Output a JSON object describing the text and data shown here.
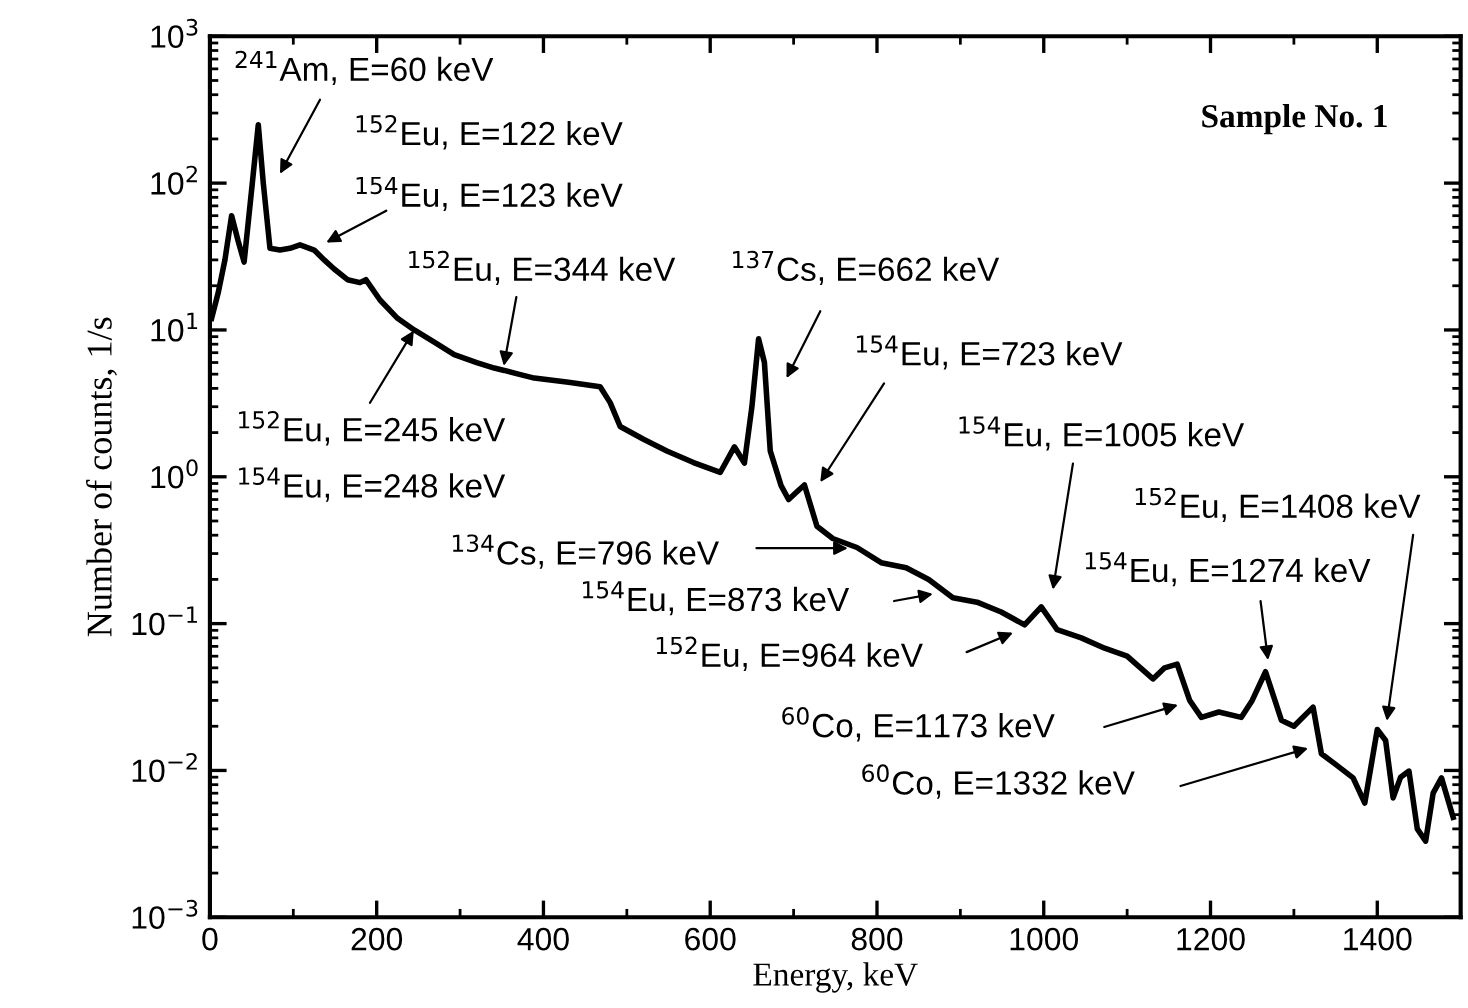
{
  "chart_data": {
    "type": "line",
    "xlabel": "Energy, keV",
    "ylabel": "Number of counts, 1/s",
    "log": "y",
    "grid": false,
    "xlim": [
      0,
      1500
    ],
    "xticks": [
      0,
      200,
      400,
      600,
      800,
      1000,
      1200,
      1400
    ],
    "ylim": [
      0.001,
      1000
    ],
    "yticks": [
      {
        "value": 0.001,
        "label": "10$^{−3}$"
      },
      {
        "value": 0.01,
        "label": "10$^{−2}$"
      },
      {
        "value": 0.1,
        "label": "10$^{−1}$"
      },
      {
        "value": 1,
        "label": "10$^{0}$"
      },
      {
        "value": 10,
        "label": "10$^{1}$"
      },
      {
        "value": 100,
        "label": "10$^{2}$"
      },
      {
        "value": 1000,
        "label": "10$^{3}$"
      }
    ],
    "series": [
      {
        "color": "#000000",
        "x": [
          2,
          10,
          18,
          26,
          34,
          41,
          50,
          58,
          64,
          72,
          84,
          96,
          108,
          125,
          137,
          149,
          165,
          180,
          187,
          204,
          225,
          245,
          270,
          293,
          320,
          341,
          353,
          370,
          389,
          430,
          468,
          480,
          492,
          520,
          548,
          580,
          612,
          629,
          641,
          650,
          658,
          665,
          672,
          685,
          694,
          705,
          713,
          728,
          747,
          776,
          805,
          835,
          862,
          891,
          920,
          949,
          977,
          997,
          1016,
          1045,
          1073,
          1100,
          1131,
          1145,
          1160,
          1175,
          1189,
          1210,
          1237,
          1250,
          1266,
          1285,
          1300,
          1323,
          1333,
          1350,
          1371,
          1385,
          1400,
          1410,
          1419,
          1428,
          1438,
          1448,
          1458,
          1467,
          1477,
          1491
        ],
        "values": [
          12,
          18,
          30,
          60,
          40,
          29,
          90,
          250,
          100,
          36,
          35,
          36,
          38,
          35,
          30,
          26,
          22,
          21,
          22,
          16,
          12,
          10,
          8.2,
          6.8,
          6,
          5.5,
          5.3,
          5,
          4.7,
          4.4,
          4.1,
          3.2,
          2.2,
          1.8,
          1.5,
          1.25,
          1.07,
          1.6,
          1.24,
          3,
          8.7,
          6,
          1.5,
          0.87,
          0.7,
          0.8,
          0.88,
          0.46,
          0.38,
          0.33,
          0.26,
          0.24,
          0.2,
          0.15,
          0.14,
          0.12,
          0.098,
          0.13,
          0.091,
          0.08,
          0.068,
          0.06,
          0.042,
          0.05,
          0.053,
          0.03,
          0.023,
          0.025,
          0.023,
          0.03,
          0.047,
          0.022,
          0.02,
          0.027,
          0.013,
          0.011,
          0.0089,
          0.006,
          0.019,
          0.016,
          0.0065,
          0.009,
          0.0099,
          0.004,
          0.0033,
          0.007,
          0.0089,
          0.0048
        ]
      }
    ],
    "annotations": [
      "$^{241}$Am, E=60 keV",
      "$^{152}$Eu, E=122 keV",
      "$^{154}$Eu, E=123 keV",
      "$^{152}$Eu, E=344 keV",
      "$^{152}$Eu, E=245 keV",
      "$^{154}$Eu, E=248 keV",
      "$^{137}$Cs, E=662 keV",
      "$^{154}$Eu, E=723 keV",
      "$^{154}$Eu, E=1005 keV",
      "$^{134}$Cs, E=796 keV",
      "$^{154}$Eu, E=873 keV",
      "$^{152}$Eu, E=964 keV",
      "$^{152}$Eu, E=1408 keV",
      "$^{154}$Eu, E=1274 keV",
      "$^{60}$Co, E=1173 keV",
      "$^{60}$Co, E=1332 keV",
      "Sample No. 1"
    ]
  }
}
